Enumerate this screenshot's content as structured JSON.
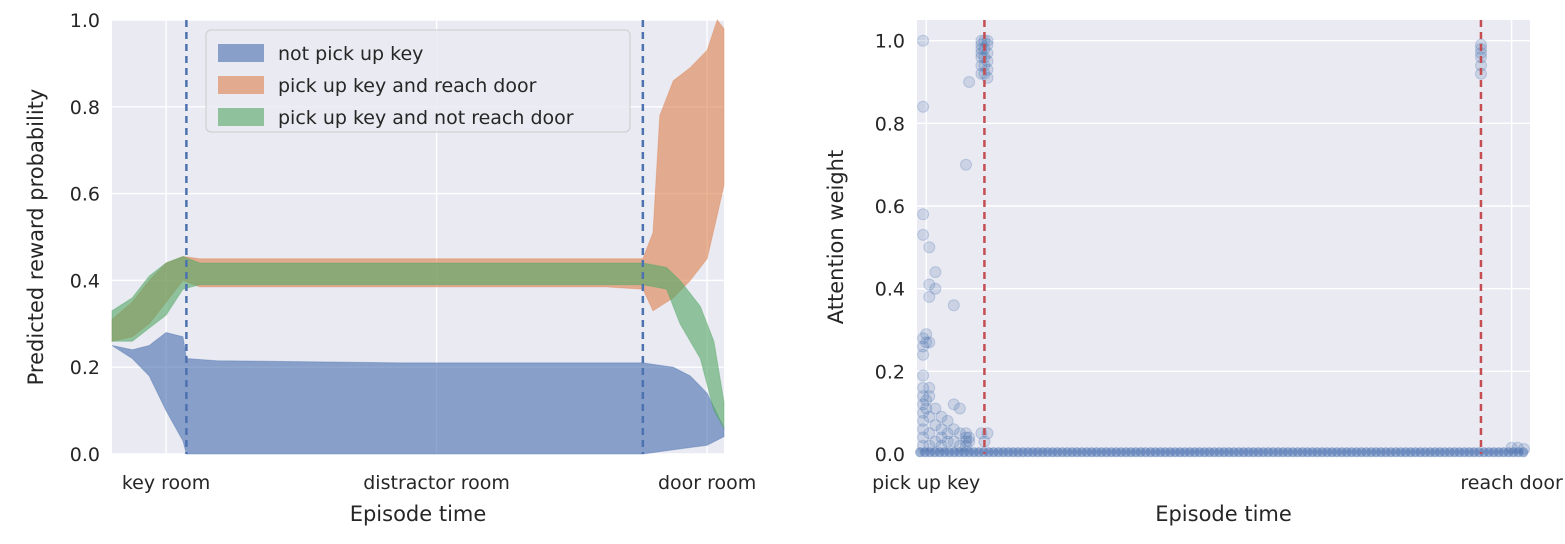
{
  "colors": {
    "plot_bg": "#eaeaf2",
    "grid": "#ffffff",
    "blue": "#4c72b0",
    "orange": "#dd8452",
    "green": "#55a868",
    "red": "#c44e52"
  },
  "chart_data": [
    {
      "type": "area",
      "xlabel": "Episode time",
      "ylabel": "Predicted reward probability",
      "xlim": [
        -0.6,
        17.5
      ],
      "ylim": [
        0,
        1
      ],
      "x_ticks": [
        {
          "x": 1,
          "label": "key room"
        },
        {
          "x": 9,
          "label": "distractor room"
        },
        {
          "x": 17,
          "label": "door room"
        }
      ],
      "y_ticks": [
        "0.0",
        "0.2",
        "0.4",
        "0.6",
        "0.8",
        "1.0"
      ],
      "vlines": [
        1.6,
        15.1
      ],
      "legend": {
        "position": "top-center"
      },
      "series": [
        {
          "name": "not pick up key",
          "color_key": "blue",
          "x": [
            -0.6,
            0.0,
            0.5,
            1.0,
            1.5,
            1.6,
            2.5,
            8.0,
            14.0,
            15.1,
            16.0,
            16.5,
            17.0,
            17.5
          ],
          "upper": [
            0.25,
            0.24,
            0.25,
            0.28,
            0.27,
            0.22,
            0.215,
            0.21,
            0.21,
            0.21,
            0.2,
            0.18,
            0.14,
            0.06
          ],
          "lower": [
            0.25,
            0.22,
            0.18,
            0.1,
            0.03,
            0.0,
            0.0,
            0.0,
            0.0,
            0.0,
            0.01,
            0.015,
            0.02,
            0.04
          ]
        },
        {
          "name": "pick up key and reach door",
          "color_key": "orange",
          "x": [
            -0.6,
            0.0,
            0.5,
            1.0,
            1.5,
            2.0,
            8.0,
            14.0,
            15.1,
            15.4,
            15.6,
            16.0,
            16.5,
            17.0,
            17.3,
            17.5
          ],
          "upper": [
            0.31,
            0.35,
            0.4,
            0.44,
            0.455,
            0.45,
            0.45,
            0.45,
            0.45,
            0.51,
            0.78,
            0.86,
            0.89,
            0.93,
            1.0,
            0.98
          ],
          "lower": [
            0.26,
            0.27,
            0.3,
            0.35,
            0.4,
            0.385,
            0.385,
            0.385,
            0.38,
            0.33,
            0.34,
            0.36,
            0.4,
            0.45,
            0.55,
            0.62
          ]
        },
        {
          "name": "pick up key and not reach door",
          "color_key": "green",
          "x": [
            -0.6,
            0.0,
            0.5,
            1.0,
            1.5,
            2.0,
            8.0,
            14.0,
            15.1,
            15.8,
            16.2,
            16.8,
            17.2,
            17.5
          ],
          "upper": [
            0.33,
            0.36,
            0.41,
            0.44,
            0.455,
            0.44,
            0.44,
            0.44,
            0.44,
            0.43,
            0.4,
            0.34,
            0.26,
            0.12
          ],
          "lower": [
            0.26,
            0.26,
            0.29,
            0.32,
            0.38,
            0.39,
            0.39,
            0.39,
            0.39,
            0.38,
            0.3,
            0.22,
            0.1,
            0.06
          ]
        }
      ]
    },
    {
      "type": "scatter",
      "xlabel": "Episode time",
      "ylabel": "Attention weight",
      "xlim": [
        0,
        100
      ],
      "ylim": [
        0,
        1.05
      ],
      "x_ticks": [
        {
          "x": 1.5,
          "label": "pick up key"
        },
        {
          "x": 97,
          "label": "reach door"
        }
      ],
      "y_ticks": [
        "0.0",
        "0.2",
        "0.4",
        "0.6",
        "0.8",
        "1.0"
      ],
      "vlines": [
        11,
        92
      ],
      "series": [
        {
          "color_key": "blue",
          "points": [
            [
              1,
              1.0
            ],
            [
              1,
              0.84
            ],
            [
              1,
              0.58
            ],
            [
              1,
              0.53
            ],
            [
              1,
              0.28
            ],
            [
              1,
              0.26
            ],
            [
              1,
              0.24
            ],
            [
              1,
              0.19
            ],
            [
              1,
              0.16
            ],
            [
              1,
              0.14
            ],
            [
              1,
              0.12
            ],
            [
              1,
              0.1
            ],
            [
              1,
              0.08
            ],
            [
              1,
              0.06
            ],
            [
              1,
              0.04
            ],
            [
              1,
              0.02
            ],
            [
              1.5,
              0.29
            ],
            [
              1.5,
              0.27
            ],
            [
              1.5,
              0.13
            ],
            [
              1.5,
              0.11
            ],
            [
              2,
              0.5
            ],
            [
              2,
              0.41
            ],
            [
              2,
              0.38
            ],
            [
              2,
              0.27
            ],
            [
              2,
              0.16
            ],
            [
              2,
              0.14
            ],
            [
              2,
              0.09
            ],
            [
              2,
              0.05
            ],
            [
              2,
              0.02
            ],
            [
              3,
              0.44
            ],
            [
              3,
              0.4
            ],
            [
              3,
              0.11
            ],
            [
              3,
              0.07
            ],
            [
              3,
              0.03
            ],
            [
              4,
              0.09
            ],
            [
              4,
              0.06
            ],
            [
              4,
              0.04
            ],
            [
              4,
              0.02
            ],
            [
              5,
              0.08
            ],
            [
              5,
              0.05
            ],
            [
              5,
              0.03
            ],
            [
              6,
              0.36
            ],
            [
              6,
              0.12
            ],
            [
              6,
              0.06
            ],
            [
              6,
              0.03
            ],
            [
              7,
              0.11
            ],
            [
              7,
              0.05
            ],
            [
              7,
              0.02
            ],
            [
              8,
              0.7
            ],
            [
              8,
              0.05
            ],
            [
              8,
              0.04
            ],
            [
              8,
              0.03
            ],
            [
              8,
              0.02
            ],
            [
              8.5,
              0.9
            ],
            [
              8.5,
              0.04
            ],
            [
              8.5,
              0.03
            ],
            [
              10.5,
              0.92
            ],
            [
              10.5,
              0.94
            ],
            [
              10.5,
              0.96
            ],
            [
              10.5,
              0.97
            ],
            [
              10.5,
              0.98
            ],
            [
              10.5,
              0.99
            ],
            [
              10.5,
              1.0
            ],
            [
              10.5,
              0.05
            ],
            [
              11,
              0.92
            ],
            [
              11,
              0.94
            ],
            [
              11,
              0.96
            ],
            [
              11,
              0.98
            ],
            [
              11,
              1.0
            ],
            [
              11,
              0.03
            ],
            [
              11.5,
              0.91
            ],
            [
              11.5,
              0.93
            ],
            [
              11.5,
              0.95
            ],
            [
              11.5,
              0.97
            ],
            [
              11.5,
              0.99
            ],
            [
              11.5,
              1.0
            ],
            [
              11.5,
              0.05
            ],
            [
              92,
              0.92
            ],
            [
              92,
              0.94
            ],
            [
              92,
              0.96
            ],
            [
              92,
              0.97
            ],
            [
              92,
              0.98
            ],
            [
              92,
              0.99
            ],
            [
              97,
              0.015
            ],
            [
              98,
              0.015
            ],
            [
              99,
              0.012
            ]
          ]
        }
      ]
    }
  ]
}
